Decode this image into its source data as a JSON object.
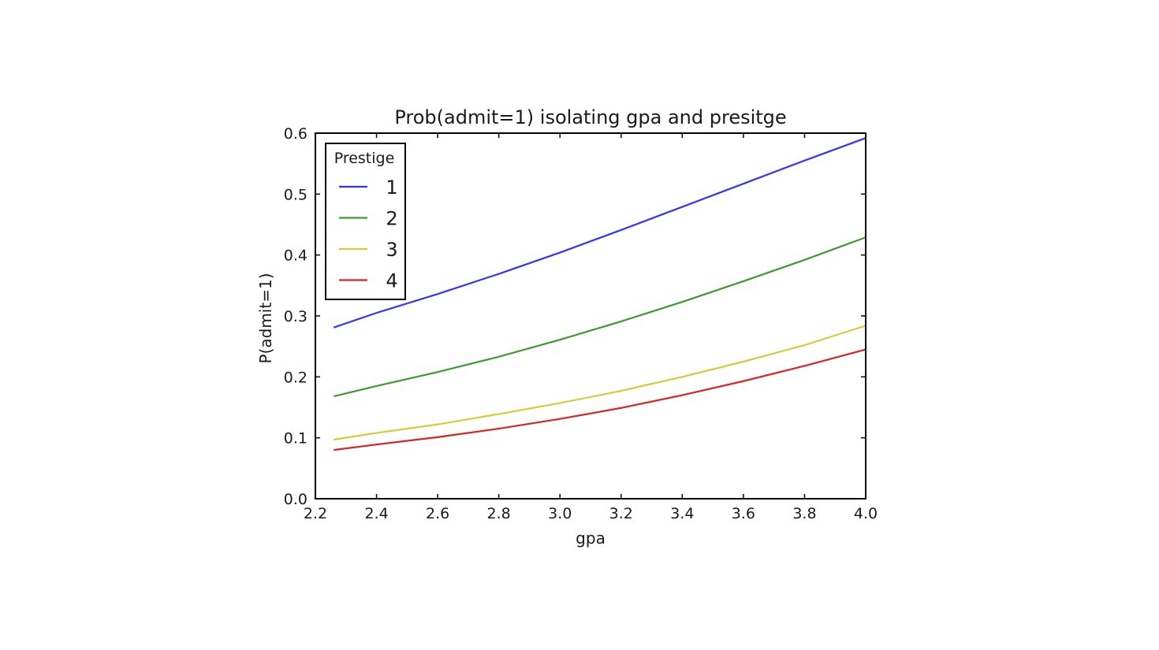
{
  "chart_data": {
    "type": "line",
    "title": "Prob(admit=1) isolating gpa and presitge",
    "xlabel": "gpa",
    "ylabel": "P(admit=1)",
    "xlim": [
      2.2,
      4.0
    ],
    "ylim": [
      0.0,
      0.6
    ],
    "xticks": [
      "2.2",
      "2.4",
      "2.6",
      "2.8",
      "3.0",
      "3.2",
      "3.4",
      "3.6",
      "3.8",
      "4.0"
    ],
    "yticks": [
      "0.0",
      "0.1",
      "0.2",
      "0.3",
      "0.4",
      "0.5",
      "0.6"
    ],
    "grid": false,
    "legend": {
      "title": "Prestige",
      "placement": "upper-left"
    },
    "x": [
      2.26,
      2.4,
      2.6,
      2.8,
      3.0,
      3.2,
      3.4,
      3.6,
      3.8,
      4.0
    ],
    "series": [
      {
        "name": "1",
        "color": "#3333ff",
        "values": [
          0.281,
          0.305,
          0.336,
          0.369,
          0.404,
          0.441,
          0.479,
          0.517,
          0.555,
          0.592
        ]
      },
      {
        "name": "2",
        "color": "#3c9a2e",
        "values": [
          0.168,
          0.185,
          0.208,
          0.233,
          0.261,
          0.291,
          0.323,
          0.357,
          0.392,
          0.429
        ]
      },
      {
        "name": "3",
        "color": "#d4cc3a",
        "values": [
          0.097,
          0.108,
          0.122,
          0.139,
          0.157,
          0.177,
          0.2,
          0.225,
          0.252,
          0.284
        ]
      },
      {
        "name": "4",
        "color": "#dd2222",
        "values": [
          0.08,
          0.089,
          0.101,
          0.115,
          0.131,
          0.149,
          0.17,
          0.193,
          0.218,
          0.245
        ]
      }
    ]
  }
}
